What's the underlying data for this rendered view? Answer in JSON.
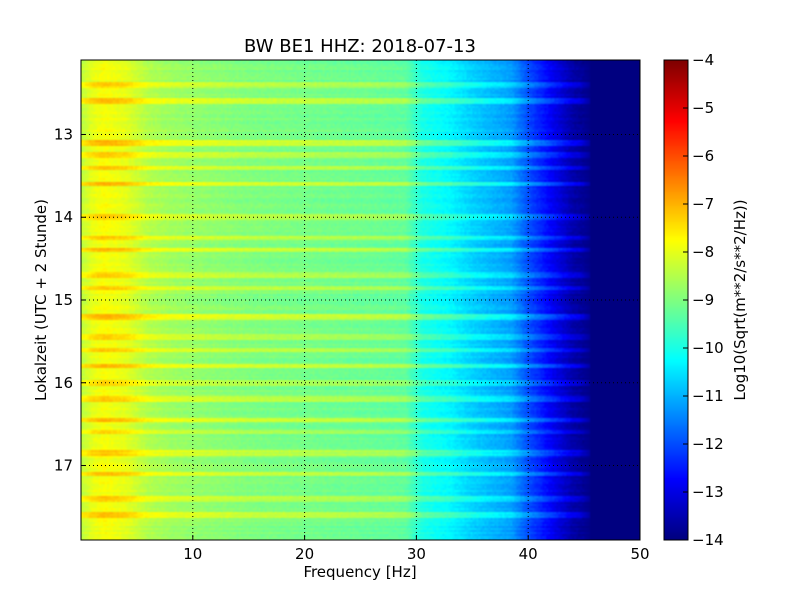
{
  "chart_data": {
    "type": "heatmap",
    "title": "BW BE1 HHZ: 2018-07-13",
    "xlabel": "Frequency [Hz]",
    "ylabel": "Lokalzeit (UTC + 2 Stunde)",
    "colorbar_label": "Log10(Sqrt(m**2/s**2/Hz))",
    "xlim": [
      0,
      50
    ],
    "ylim": [
      12.1,
      17.9
    ],
    "y_inverted": true,
    "x_ticks": [
      10,
      20,
      30,
      40,
      50
    ],
    "x_tick_labels": [
      "10",
      "20",
      "30",
      "40",
      "50"
    ],
    "y_ticks": [
      13,
      14,
      15,
      16,
      17
    ],
    "y_tick_labels": [
      "13",
      "14",
      "15",
      "16",
      "17"
    ],
    "colorbar_ticks": [
      -14,
      -13,
      -12,
      -11,
      -10,
      -9,
      -8,
      -7,
      -6,
      -5,
      -4
    ],
    "colorbar_tick_labels": [
      "−14",
      "−13",
      "−12",
      "−11",
      "−10",
      "−9",
      "−8",
      "−7",
      "−6",
      "−5",
      "−4"
    ],
    "colormap": "jet",
    "value_range": [
      -14,
      -4
    ],
    "grid": true,
    "frequency_profile": {
      "frequency_hz": [
        0,
        1,
        2,
        4,
        6,
        8,
        10,
        15,
        20,
        25,
        29,
        30.5,
        33,
        35,
        37,
        38.5,
        40,
        42,
        44,
        46,
        50
      ],
      "log_amplitude": [
        -8.4,
        -8.0,
        -7.8,
        -8.0,
        -8.5,
        -8.7,
        -8.8,
        -9.0,
        -9.1,
        -9.2,
        -9.3,
        -10.0,
        -10.3,
        -10.7,
        -11.0,
        -11.2,
        -12.0,
        -12.8,
        -13.6,
        -14.0,
        -14.0
      ]
    },
    "bright_bands_time_h": [
      12.4,
      12.6,
      13.1,
      13.25,
      13.4,
      13.6,
      14.0,
      14.25,
      14.4,
      14.7,
      14.85,
      15.2,
      15.45,
      15.6,
      15.8,
      16.0,
      16.2,
      16.45,
      16.6,
      16.85,
      17.1,
      17.4,
      17.6
    ]
  }
}
